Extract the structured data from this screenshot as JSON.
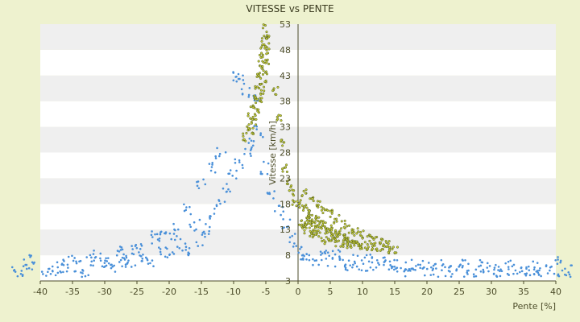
{
  "chart_data": {
    "type": "scatter",
    "title": "VITESSE vs PENTE",
    "xlabel": "Pente [%]",
    "ylabel": "Vitesse [km/h]",
    "xlim": [
      -40,
      40
    ],
    "ylim": [
      3,
      53
    ],
    "x_ticks": [
      -40,
      -35,
      -30,
      -25,
      -20,
      -15,
      -10,
      -5,
      0,
      5,
      10,
      15,
      20,
      25,
      30,
      35,
      40
    ],
    "y_ticks": [
      3,
      8,
      13,
      18,
      23,
      28,
      33,
      38,
      43,
      48,
      53
    ],
    "legend": "none",
    "grid": "alternating horizontal bands",
    "colors": {
      "page_background": "#eef2cf",
      "band_light": "#ffffff",
      "band_dark": "#efefef",
      "series_1": "#4a90d9",
      "series_2": "#c8cc3a",
      "series_2_edge": "#4b5a1a",
      "axis": "#4b4b2a"
    },
    "series": [
      {
        "color": "#4a90d9",
        "description_points": [
          [
            -44,
            5
          ],
          [
            -43,
            5
          ],
          [
            -42,
            6
          ],
          [
            -41,
            7
          ],
          [
            -39,
            5
          ],
          [
            -38,
            5
          ],
          [
            -37,
            6
          ],
          [
            -36,
            5
          ],
          [
            -35,
            7
          ],
          [
            -34,
            6
          ],
          [
            -33,
            5
          ],
          [
            -32,
            7
          ],
          [
            -31,
            8
          ],
          [
            -30,
            6
          ],
          [
            -29,
            5
          ],
          [
            -28,
            9
          ],
          [
            -27,
            7
          ],
          [
            -26,
            6
          ],
          [
            -25,
            10
          ],
          [
            -24,
            8
          ],
          [
            -23,
            7
          ],
          [
            -22,
            11
          ],
          [
            -21,
            9
          ],
          [
            -20,
            8
          ],
          [
            -19,
            12
          ],
          [
            -18,
            10
          ],
          [
            -17,
            9
          ],
          [
            -16,
            14
          ],
          [
            -15,
            11
          ],
          [
            -14,
            13
          ],
          [
            -13,
            16
          ],
          [
            -12,
            18
          ],
          [
            -11,
            21
          ],
          [
            -10,
            24
          ],
          [
            -9,
            26
          ],
          [
            -8,
            28
          ],
          [
            -7,
            30
          ],
          [
            -6,
            32
          ],
          [
            -5,
            25
          ],
          [
            -4,
            20
          ],
          [
            -3,
            17
          ],
          [
            -2,
            14
          ],
          [
            -1,
            11
          ],
          [
            0,
            9
          ],
          [
            1,
            8
          ],
          [
            2,
            8
          ],
          [
            3,
            7
          ],
          [
            4,
            8
          ],
          [
            5,
            7
          ],
          [
            6,
            8
          ],
          [
            7,
            7
          ],
          [
            8,
            6
          ],
          [
            9,
            7
          ],
          [
            10,
            6
          ],
          [
            11,
            7
          ],
          [
            12,
            6
          ],
          [
            13,
            7
          ],
          [
            14,
            6
          ],
          [
            15,
            6
          ],
          [
            16,
            6
          ],
          [
            17,
            5
          ],
          [
            18,
            6
          ],
          [
            19,
            5
          ],
          [
            20,
            6
          ],
          [
            21,
            5
          ],
          [
            22,
            6
          ],
          [
            23,
            5
          ],
          [
            24,
            5
          ],
          [
            25,
            5
          ],
          [
            26,
            6
          ],
          [
            27,
            5
          ],
          [
            28,
            5
          ],
          [
            29,
            6
          ],
          [
            30,
            5
          ],
          [
            31,
            5
          ],
          [
            32,
            5
          ],
          [
            33,
            6
          ],
          [
            34,
            5
          ],
          [
            35,
            5
          ],
          [
            36,
            5
          ],
          [
            37,
            6
          ],
          [
            38,
            5
          ],
          [
            39,
            5
          ],
          [
            40,
            7
          ],
          [
            41,
            5
          ],
          [
            42,
            5
          ],
          [
            -10,
            43
          ],
          [
            -9,
            42
          ],
          [
            -8,
            40
          ],
          [
            -7,
            38
          ],
          [
            -15,
            22
          ],
          [
            -13,
            25
          ],
          [
            -12,
            28
          ],
          [
            -17,
            17
          ],
          [
            -20,
            13
          ],
          [
            -22,
            12
          ],
          [
            -25,
            9
          ],
          [
            -27,
            8
          ],
          [
            -30,
            7
          ]
        ]
      },
      {
        "color": "#c8cc3a",
        "description_points": [
          [
            -5,
            53
          ],
          [
            -5.2,
            51
          ],
          [
            -5.4,
            49
          ],
          [
            -5.6,
            47
          ],
          [
            -5.8,
            45
          ],
          [
            -6,
            43
          ],
          [
            -6.3,
            41
          ],
          [
            -6.6,
            39
          ],
          [
            -7,
            37
          ],
          [
            -7.4,
            35
          ],
          [
            -7.8,
            33
          ],
          [
            -8.2,
            31
          ],
          [
            -4.6,
            50
          ],
          [
            -4.8,
            48
          ],
          [
            -5,
            46
          ],
          [
            -5.2,
            44
          ],
          [
            -5.4,
            42
          ],
          [
            -5.7,
            40
          ],
          [
            -6,
            38
          ],
          [
            -6.4,
            36
          ],
          [
            -6.8,
            34
          ],
          [
            -7.2,
            32
          ],
          [
            -3.5,
            40
          ],
          [
            -3,
            35
          ],
          [
            -2.5,
            30
          ],
          [
            -2,
            25
          ],
          [
            -1.5,
            22
          ],
          [
            -1,
            20
          ],
          [
            -0.5,
            18
          ],
          [
            0.5,
            18
          ],
          [
            1,
            17
          ],
          [
            1.5,
            16
          ],
          [
            2,
            16
          ],
          [
            2.5,
            15
          ],
          [
            3,
            15
          ],
          [
            3.5,
            14
          ],
          [
            4,
            14
          ],
          [
            4.5,
            13
          ],
          [
            5,
            13
          ],
          [
            5.5,
            12.5
          ],
          [
            6,
            12
          ],
          [
            6.5,
            12
          ],
          [
            7,
            11.5
          ],
          [
            7.5,
            11
          ],
          [
            8,
            11
          ],
          [
            8.5,
            10.5
          ],
          [
            9,
            10.5
          ],
          [
            9.5,
            10
          ],
          [
            10,
            10
          ],
          [
            11,
            9.8
          ],
          [
            12,
            9.6
          ],
          [
            13,
            9.4
          ],
          [
            14,
            9.2
          ],
          [
            15,
            9
          ],
          [
            1,
            20
          ],
          [
            2,
            19
          ],
          [
            3,
            18
          ],
          [
            4,
            17
          ],
          [
            5,
            16
          ],
          [
            6,
            15
          ],
          [
            7,
            14
          ],
          [
            8,
            13
          ],
          [
            9,
            12.5
          ],
          [
            10,
            12
          ],
          [
            11,
            11.5
          ],
          [
            12,
            11
          ],
          [
            13,
            10.5
          ],
          [
            14,
            10
          ],
          [
            1,
            13
          ],
          [
            2,
            12
          ],
          [
            3,
            12
          ],
          [
            4,
            11
          ],
          [
            5,
            11
          ],
          [
            6,
            10.5
          ],
          [
            7,
            10
          ],
          [
            8,
            10
          ],
          [
            0.5,
            14
          ],
          [
            1,
            14
          ],
          [
            1.5,
            15
          ],
          [
            2,
            14
          ],
          [
            2.5,
            13
          ],
          [
            3,
            13
          ]
        ]
      }
    ]
  }
}
